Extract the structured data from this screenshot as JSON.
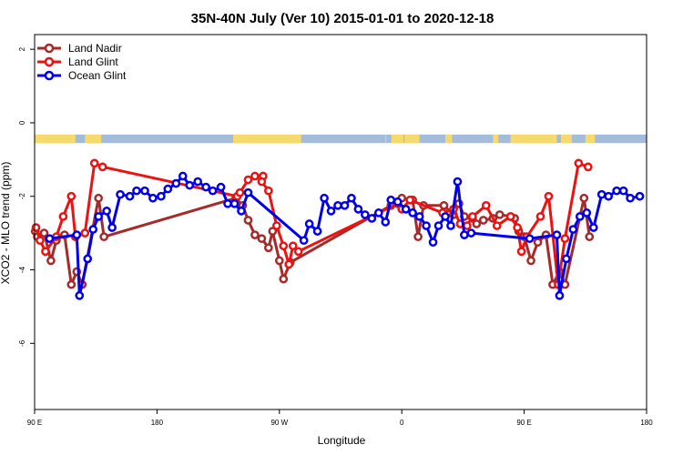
{
  "chart_data": {
    "type": "line",
    "title": "35N-40N July (Ver 10)   2015-01-01 to 2020-12-18",
    "xlabel": "Longitude",
    "ylabel": "XCO2 - MLO trend (ppm)",
    "xlim": [
      0,
      450
    ],
    "ylim": [
      -7.8,
      2.4
    ],
    "x_ticks": [
      {
        "value": 0,
        "label": "90 E"
      },
      {
        "value": 90,
        "label": "180"
      },
      {
        "value": 180,
        "label": "90 W"
      },
      {
        "value": 270,
        "label": "0"
      },
      {
        "value": 360,
        "label": "90 E"
      },
      {
        "value": 450,
        "label": "180"
      }
    ],
    "y_ticks": [
      {
        "value": 2,
        "label": "2"
      },
      {
        "value": 0,
        "label": "0"
      },
      {
        "value": -2,
        "label": "-2"
      },
      {
        "value": -4,
        "label": "-4"
      },
      {
        "value": -6,
        "label": "-6"
      }
    ],
    "grid": false,
    "legend_position": "top-left",
    "land_ocean_strip": {
      "y_range": [
        -0.55,
        -0.32
      ],
      "ocean_color": "#a3bcdc",
      "land_color": "#f7da6d",
      "land_x_ranges": [
        [
          0,
          30
        ],
        [
          37,
          49
        ],
        [
          146,
          196
        ],
        [
          258,
          258.5
        ],
        [
          262.3,
          271.2
        ],
        [
          272,
          283
        ],
        [
          302,
          307
        ],
        [
          337,
          341
        ],
        [
          350,
          360
        ],
        [
          360,
          384
        ],
        [
          387,
          395
        ],
        [
          405,
          408
        ],
        [
          408,
          412
        ]
      ]
    },
    "series": [
      {
        "name": "Land Nadir",
        "color": "#a52a2a",
        "points": [
          [
            0.5,
            -2.95
          ],
          [
            2,
            -3.1
          ],
          [
            7,
            -3.0
          ],
          [
            12,
            -3.75
          ],
          [
            16,
            -3.2
          ],
          [
            22,
            -3.05
          ],
          [
            27,
            -4.4
          ],
          [
            31,
            -4.05
          ],
          [
            35,
            -4.4
          ],
          [
            47,
            -2.05
          ],
          [
            51,
            -3.1
          ],
          [
            148,
            -2.05
          ],
          [
            153,
            -2.25
          ],
          [
            157,
            -2.65
          ],
          [
            162,
            -3.05
          ],
          [
            167,
            -3.15
          ],
          [
            172,
            -3.4
          ],
          [
            175,
            -2.95
          ],
          [
            180,
            -3.75
          ],
          [
            183,
            -4.25
          ],
          [
            188,
            -3.8
          ],
          [
            262,
            -2.25
          ],
          [
            270,
            -2.05
          ],
          [
            278,
            -2.1
          ],
          [
            282,
            -3.1
          ],
          [
            286,
            -2.25
          ],
          [
            301,
            -2.25
          ],
          [
            308,
            -2.5
          ],
          [
            312,
            -2.2
          ],
          [
            316,
            -2.55
          ],
          [
            322,
            -2.6
          ],
          [
            325,
            -2.75
          ],
          [
            330,
            -2.65
          ],
          [
            337,
            -2.6
          ],
          [
            342,
            -2.5
          ],
          [
            350,
            -2.55
          ],
          [
            353,
            -2.6
          ],
          [
            356,
            -2.95
          ],
          [
            360,
            -3.1
          ],
          [
            365,
            -3.75
          ],
          [
            370,
            -3.25
          ],
          [
            376,
            -3.05
          ],
          [
            381,
            -4.4
          ],
          [
            386,
            -4.05
          ],
          [
            390,
            -4.4
          ],
          [
            404,
            -2.05
          ],
          [
            408,
            -3.1
          ]
        ]
      },
      {
        "name": "Land Glint",
        "color": "#ee1111",
        "points": [
          [
            1,
            -2.85
          ],
          [
            4,
            -3.2
          ],
          [
            8,
            -3.5
          ],
          [
            16,
            -3.1
          ],
          [
            21,
            -2.55
          ],
          [
            27,
            -2.0
          ],
          [
            30,
            -3.1
          ],
          [
            37,
            -3.0
          ],
          [
            44,
            -1.1
          ],
          [
            50,
            -1.2
          ],
          [
            149,
            -2.0
          ],
          [
            151,
            -1.9
          ],
          [
            157,
            -1.55
          ],
          [
            162,
            -1.45
          ],
          [
            168,
            -1.45
          ],
          [
            167,
            -1.6
          ],
          [
            172,
            -1.85
          ],
          [
            178,
            -2.8
          ],
          [
            183,
            -3.35
          ],
          [
            187,
            -3.85
          ],
          [
            190,
            -3.35
          ],
          [
            194,
            -3.5
          ],
          [
            267,
            -2.2
          ],
          [
            270,
            -2.35
          ],
          [
            276,
            -2.1
          ],
          [
            300,
            -2.45
          ],
          [
            308,
            -2.35
          ],
          [
            313,
            -2.75
          ],
          [
            318,
            -2.8
          ],
          [
            322,
            -2.55
          ],
          [
            332,
            -2.25
          ],
          [
            340,
            -2.8
          ],
          [
            350,
            -2.55
          ],
          [
            355,
            -2.85
          ],
          [
            358,
            -3.5
          ],
          [
            362,
            -3.1
          ],
          [
            372,
            -2.55
          ],
          [
            378,
            -2.0
          ],
          [
            385,
            -4.4
          ],
          [
            390,
            -3.15
          ],
          [
            400,
            -1.1
          ],
          [
            407,
            -1.2
          ]
        ]
      },
      {
        "name": "Ocean Glint",
        "color": "#0000ee",
        "points": [
          [
            11,
            -3.15
          ],
          [
            31,
            -3.05
          ],
          [
            33,
            -4.7
          ],
          [
            39,
            -3.7
          ],
          [
            43,
            -2.9
          ],
          [
            47,
            -2.55
          ],
          [
            53,
            -2.4
          ],
          [
            57,
            -2.85
          ],
          [
            63,
            -1.95
          ],
          [
            70,
            -2.0
          ],
          [
            75,
            -1.85
          ],
          [
            81,
            -1.85
          ],
          [
            87,
            -2.05
          ],
          [
            93,
            -2.0
          ],
          [
            98,
            -1.8
          ],
          [
            104,
            -1.65
          ],
          [
            109,
            -1.45
          ],
          [
            114,
            -1.7
          ],
          [
            120,
            -1.6
          ],
          [
            126,
            -1.75
          ],
          [
            131,
            -1.85
          ],
          [
            137,
            -1.75
          ],
          [
            142,
            -2.2
          ],
          [
            147,
            -2.2
          ],
          [
            152,
            -2.4
          ],
          [
            157,
            -1.9
          ],
          [
            198,
            -3.2
          ],
          [
            202,
            -2.75
          ],
          [
            208,
            -2.95
          ],
          [
            213,
            -2.05
          ],
          [
            218,
            -2.4
          ],
          [
            223,
            -2.25
          ],
          [
            228,
            -2.25
          ],
          [
            233,
            -2.05
          ],
          [
            238,
            -2.35
          ],
          [
            243,
            -2.5
          ],
          [
            248,
            -2.6
          ],
          [
            253,
            -2.45
          ],
          [
            258,
            -2.7
          ],
          [
            262,
            -2.1
          ],
          [
            267,
            -2.15
          ],
          [
            273,
            -2.35
          ],
          [
            278,
            -2.45
          ],
          [
            283,
            -2.55
          ],
          [
            288,
            -2.8
          ],
          [
            293,
            -3.25
          ],
          [
            297,
            -2.8
          ],
          [
            302,
            -2.55
          ],
          [
            306,
            -2.8
          ],
          [
            311,
            -1.6
          ],
          [
            316,
            -3.05
          ],
          [
            321,
            -3.0
          ],
          [
            364,
            -3.15
          ],
          [
            384,
            -3.05
          ],
          [
            386,
            -4.7
          ],
          [
            391,
            -3.7
          ],
          [
            396,
            -2.9
          ],
          [
            401,
            -2.55
          ],
          [
            406,
            -2.45
          ],
          [
            411,
            -2.85
          ],
          [
            417,
            -1.95
          ],
          [
            422,
            -2.0
          ],
          [
            428,
            -1.85
          ],
          [
            433,
            -1.85
          ],
          [
            438,
            -2.05
          ],
          [
            445,
            -2.0
          ]
        ]
      }
    ]
  }
}
